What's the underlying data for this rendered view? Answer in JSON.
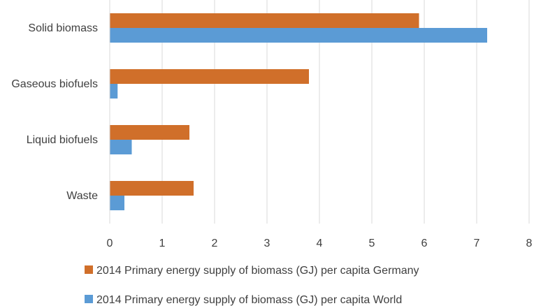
{
  "chart_data": {
    "type": "bar",
    "orientation": "horizontal",
    "categories": [
      "Solid biomass",
      "Gaseous biofuels",
      "Liquid biofuels",
      "Waste"
    ],
    "series": [
      {
        "name": "2014 Primary energy supply of biomass (GJ) per capita Germany",
        "color": "#D06F2A",
        "values": [
          5.9,
          3.8,
          1.52,
          1.6
        ]
      },
      {
        "name": "2014 Primary energy supply of biomass (GJ) per capita World",
        "color": "#5B9BD5",
        "values": [
          7.2,
          0.15,
          0.42,
          0.28
        ]
      }
    ],
    "xlim": [
      0,
      8
    ],
    "xticks": [
      0,
      1,
      2,
      3,
      4,
      5,
      6,
      7,
      8
    ],
    "grid": "vertical",
    "legend_position": "bottom",
    "title": "",
    "xlabel": "",
    "ylabel": ""
  }
}
